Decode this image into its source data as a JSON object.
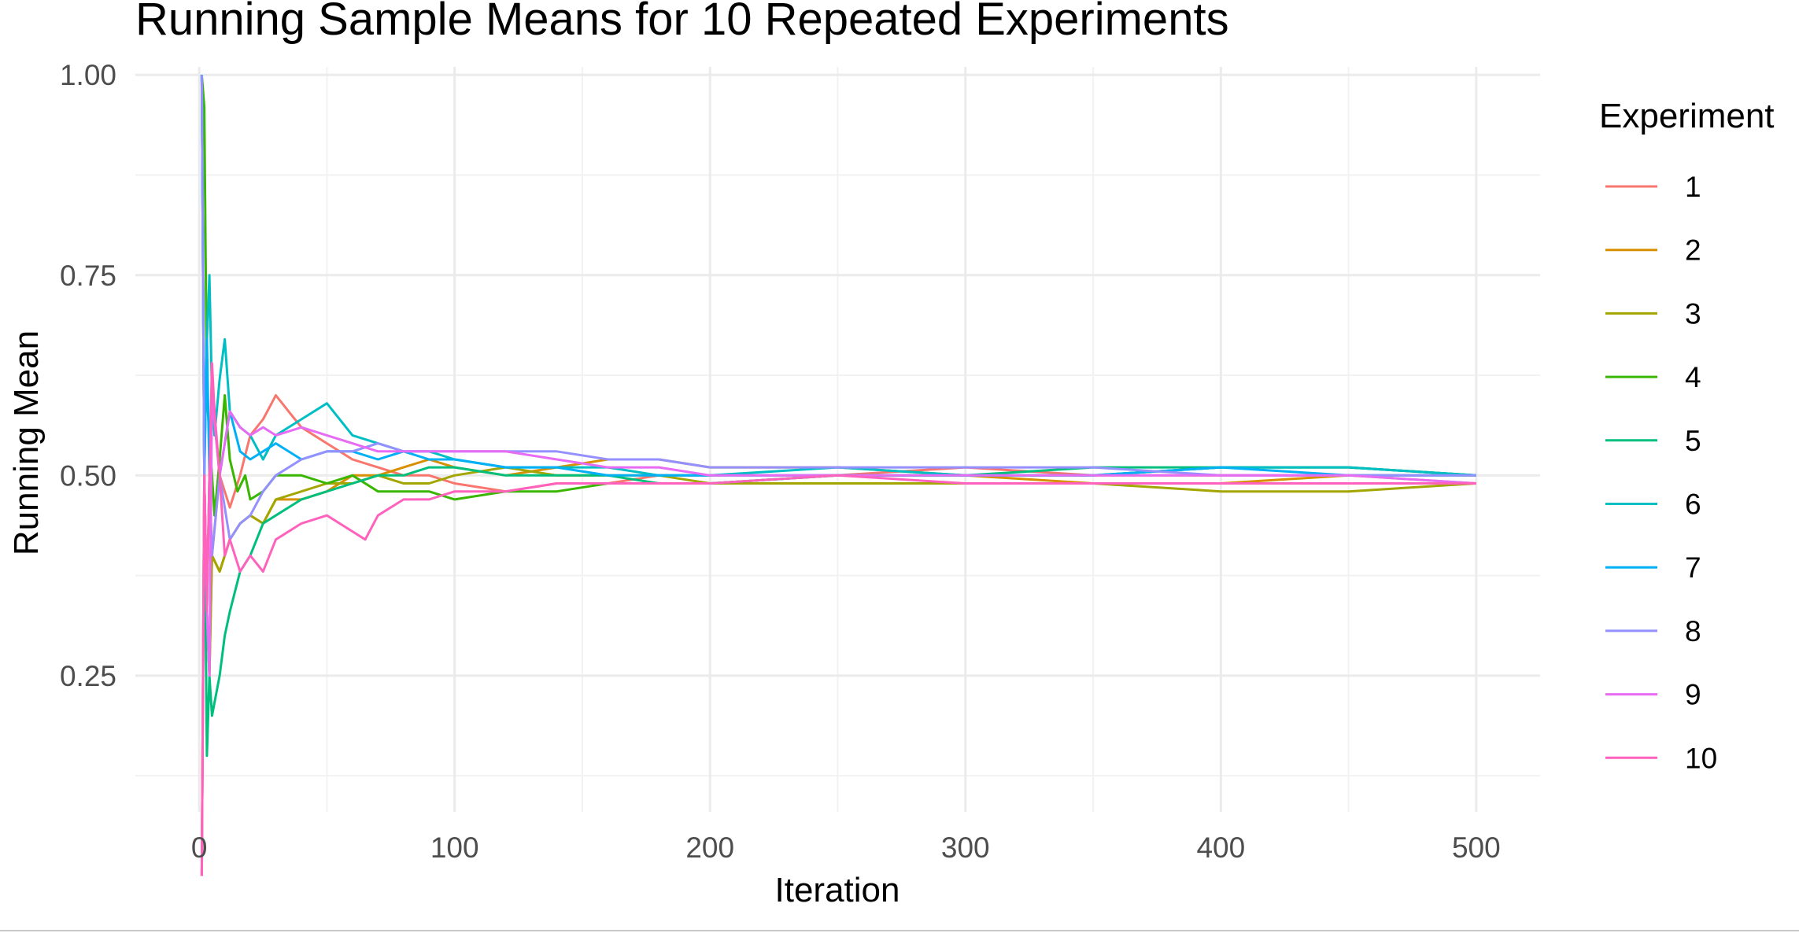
{
  "chart_data": {
    "type": "line",
    "title": "Running Sample Means for 10 Repeated Experiments",
    "xlabel": "Iteration",
    "ylabel": "Running Mean",
    "xlim": [
      -25,
      525
    ],
    "ylim": [
      0.08,
      1.01
    ],
    "x_ticks": [
      0,
      100,
      200,
      300,
      400,
      500
    ],
    "x_tick_labels": [
      "0",
      "100",
      "200",
      "300",
      "400",
      "500"
    ],
    "y_ticks": [
      0.25,
      0.5,
      0.75,
      1.0
    ],
    "y_tick_labels": [
      "0.25",
      "0.50",
      "0.75",
      "1.00"
    ],
    "grid": true,
    "legend": {
      "title": "Experiment",
      "position": "right"
    },
    "series": [
      {
        "name": "1",
        "color": "#F8766D",
        "x": [
          1,
          2,
          3,
          4,
          5,
          8,
          12,
          16,
          20,
          25,
          30,
          35,
          40,
          50,
          60,
          70,
          80,
          90,
          100,
          120,
          140,
          160,
          180,
          200,
          250,
          300,
          350,
          400,
          450,
          500
        ],
        "values": [
          0.0,
          0.5,
          0.33,
          0.25,
          0.4,
          0.5,
          0.46,
          0.5,
          0.55,
          0.57,
          0.6,
          0.58,
          0.56,
          0.54,
          0.52,
          0.51,
          0.5,
          0.5,
          0.49,
          0.48,
          0.49,
          0.49,
          0.5,
          0.5,
          0.5,
          0.51,
          0.5,
          0.5,
          0.5,
          0.49
        ]
      },
      {
        "name": "2",
        "color": "#D89000",
        "x": [
          1,
          2,
          3,
          4,
          5,
          8,
          12,
          16,
          20,
          25,
          30,
          40,
          50,
          60,
          70,
          80,
          90,
          100,
          120,
          140,
          160,
          180,
          200,
          250,
          300,
          350,
          400,
          450,
          500
        ],
        "values": [
          0.0,
          0.5,
          0.33,
          0.5,
          0.4,
          0.38,
          0.42,
          0.44,
          0.45,
          0.44,
          0.47,
          0.47,
          0.48,
          0.5,
          0.5,
          0.51,
          0.52,
          0.51,
          0.5,
          0.51,
          0.52,
          0.52,
          0.51,
          0.51,
          0.5,
          0.49,
          0.49,
          0.5,
          0.5
        ]
      },
      {
        "name": "3",
        "color": "#A3A500",
        "x": [
          1,
          2,
          3,
          4,
          5,
          8,
          12,
          16,
          20,
          25,
          30,
          40,
          50,
          60,
          70,
          80,
          90,
          100,
          120,
          140,
          160,
          180,
          200,
          250,
          300,
          350,
          400,
          450,
          500
        ],
        "values": [
          1.0,
          0.5,
          0.33,
          0.25,
          0.4,
          0.38,
          0.42,
          0.44,
          0.45,
          0.44,
          0.47,
          0.48,
          0.49,
          0.49,
          0.5,
          0.49,
          0.49,
          0.5,
          0.51,
          0.5,
          0.5,
          0.5,
          0.49,
          0.49,
          0.49,
          0.49,
          0.48,
          0.48,
          0.49
        ]
      },
      {
        "name": "4",
        "color": "#39B600",
        "x": [
          1,
          2,
          3,
          4,
          5,
          6,
          8,
          10,
          12,
          15,
          18,
          20,
          25,
          30,
          40,
          50,
          60,
          70,
          80,
          90,
          100,
          120,
          140,
          160,
          180,
          200,
          250,
          300,
          350,
          400,
          450,
          500
        ],
        "values": [
          1.0,
          0.96,
          0.6,
          0.55,
          0.5,
          0.45,
          0.52,
          0.6,
          0.52,
          0.48,
          0.5,
          0.47,
          0.48,
          0.5,
          0.5,
          0.49,
          0.5,
          0.48,
          0.48,
          0.48,
          0.47,
          0.48,
          0.48,
          0.49,
          0.49,
          0.49,
          0.5,
          0.5,
          0.5,
          0.51,
          0.51,
          0.5
        ]
      },
      {
        "name": "5",
        "color": "#00BF7D",
        "x": [
          1,
          2,
          3,
          4,
          5,
          8,
          10,
          12,
          16,
          20,
          25,
          30,
          40,
          50,
          60,
          70,
          80,
          90,
          100,
          120,
          140,
          160,
          180,
          200,
          250,
          300,
          350,
          400,
          450,
          500
        ],
        "values": [
          1.0,
          0.5,
          0.15,
          0.25,
          0.2,
          0.25,
          0.3,
          0.33,
          0.38,
          0.4,
          0.44,
          0.45,
          0.47,
          0.48,
          0.49,
          0.5,
          0.5,
          0.51,
          0.51,
          0.5,
          0.5,
          0.5,
          0.49,
          0.49,
          0.5,
          0.5,
          0.51,
          0.51,
          0.51,
          0.5
        ]
      },
      {
        "name": "6",
        "color": "#00BFC4",
        "x": [
          1,
          2,
          3,
          4,
          5,
          6,
          8,
          10,
          12,
          16,
          20,
          25,
          30,
          40,
          50,
          60,
          70,
          80,
          90,
          100,
          120,
          140,
          160,
          180,
          200,
          250,
          300,
          350,
          400,
          450,
          500
        ],
        "values": [
          1.0,
          0.5,
          0.67,
          0.75,
          0.6,
          0.55,
          0.62,
          0.67,
          0.58,
          0.56,
          0.55,
          0.52,
          0.55,
          0.57,
          0.59,
          0.55,
          0.54,
          0.53,
          0.53,
          0.52,
          0.51,
          0.51,
          0.51,
          0.5,
          0.5,
          0.51,
          0.5,
          0.5,
          0.51,
          0.51,
          0.5
        ]
      },
      {
        "name": "7",
        "color": "#00B0F6",
        "x": [
          1,
          2,
          3,
          4,
          5,
          8,
          12,
          16,
          20,
          25,
          30,
          40,
          50,
          60,
          70,
          80,
          90,
          100,
          120,
          140,
          160,
          180,
          200,
          250,
          300,
          350,
          400,
          450,
          500
        ],
        "values": [
          1.0,
          0.5,
          0.67,
          0.5,
          0.6,
          0.5,
          0.58,
          0.53,
          0.52,
          0.53,
          0.54,
          0.52,
          0.53,
          0.53,
          0.52,
          0.53,
          0.52,
          0.52,
          0.51,
          0.51,
          0.5,
          0.5,
          0.5,
          0.5,
          0.5,
          0.5,
          0.51,
          0.5,
          0.5
        ]
      },
      {
        "name": "8",
        "color": "#9590FF",
        "x": [
          1,
          2,
          3,
          4,
          5,
          8,
          12,
          16,
          20,
          25,
          30,
          40,
          50,
          60,
          70,
          80,
          90,
          100,
          120,
          140,
          160,
          180,
          200,
          250,
          300,
          350,
          400,
          450,
          500
        ],
        "values": [
          1.0,
          0.5,
          0.33,
          0.5,
          0.4,
          0.5,
          0.42,
          0.44,
          0.45,
          0.48,
          0.5,
          0.52,
          0.53,
          0.53,
          0.54,
          0.53,
          0.53,
          0.53,
          0.53,
          0.53,
          0.52,
          0.52,
          0.51,
          0.51,
          0.51,
          0.51,
          0.5,
          0.5,
          0.5
        ]
      },
      {
        "name": "9",
        "color": "#E76BF3",
        "x": [
          1,
          2,
          3,
          4,
          5,
          8,
          12,
          16,
          20,
          25,
          30,
          40,
          50,
          60,
          70,
          80,
          90,
          100,
          120,
          140,
          160,
          180,
          200,
          250,
          300,
          350,
          400,
          450,
          500
        ],
        "values": [
          0.0,
          0.5,
          0.33,
          0.25,
          0.6,
          0.5,
          0.58,
          0.56,
          0.55,
          0.56,
          0.55,
          0.56,
          0.55,
          0.54,
          0.53,
          0.53,
          0.53,
          0.53,
          0.53,
          0.52,
          0.51,
          0.51,
          0.5,
          0.5,
          0.5,
          0.5,
          0.5,
          0.5,
          0.49
        ]
      },
      {
        "name": "10",
        "color": "#FF62BC",
        "x": [
          1,
          2,
          3,
          4,
          5,
          6,
          8,
          10,
          12,
          16,
          20,
          25,
          30,
          40,
          50,
          60,
          65,
          70,
          80,
          90,
          100,
          120,
          140,
          160,
          180,
          200,
          250,
          300,
          350,
          400,
          450,
          500
        ],
        "values": [
          0.0,
          0.5,
          0.33,
          0.5,
          0.64,
          0.58,
          0.5,
          0.4,
          0.42,
          0.38,
          0.4,
          0.38,
          0.42,
          0.44,
          0.45,
          0.43,
          0.42,
          0.45,
          0.47,
          0.47,
          0.48,
          0.48,
          0.49,
          0.49,
          0.49,
          0.49,
          0.5,
          0.49,
          0.49,
          0.49,
          0.49,
          0.49
        ]
      }
    ]
  }
}
